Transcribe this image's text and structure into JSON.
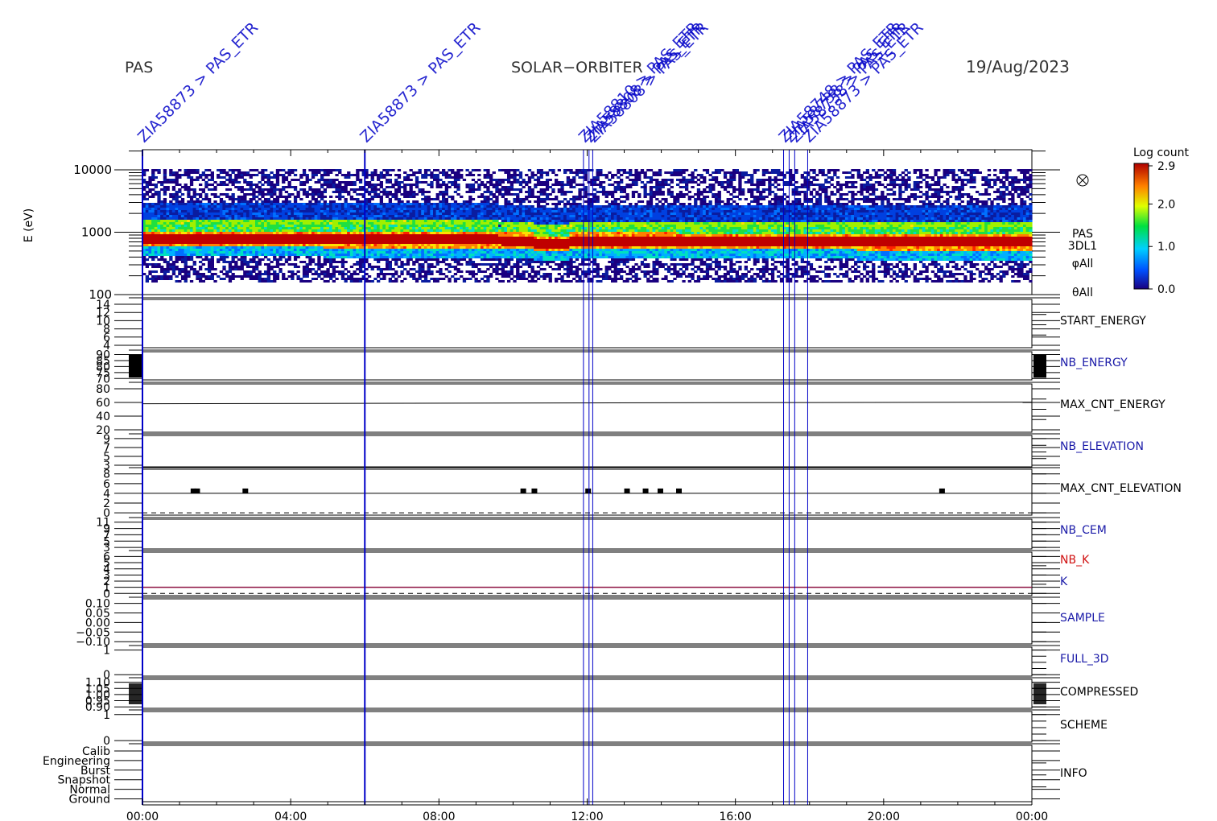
{
  "header": {
    "left": "PAS",
    "center": "SOLAR−ORBITER",
    "right": "19/Aug/2023"
  },
  "colors": {
    "axes": "#000000",
    "event_line": "#0000c8",
    "panel_label_blue": "#1a1aa8",
    "panel_label_red": "#d01010",
    "nb_k_line": "#8c1040"
  },
  "chart_data": {
    "type": "heatmap",
    "x_axis": {
      "ticks": [
        "00:00",
        "04:00",
        "08:00",
        "12:00",
        "16:00",
        "20:00",
        "00:00"
      ],
      "range_hours": [
        0,
        24
      ]
    },
    "events": [
      {
        "hour": 0.0,
        "label": "ZIA58873 > PAS_ETR"
      },
      {
        "hour": 6.0,
        "label": "ZIA58873 > PAS_ETR"
      },
      {
        "hour": 11.9,
        "label": "ZIA58810 > PAS_ETR"
      },
      {
        "hour": 12.05,
        "label": "ZIA58808 > PAS_ETR"
      },
      {
        "hour": 12.15,
        "label": "ZIA58808 > PAS_ETR"
      },
      {
        "hour": 17.3,
        "label": "ZIA58748 > PAS_ETR"
      },
      {
        "hour": 17.45,
        "label": "ZIA58738 > PAS_ETR"
      },
      {
        "hour": 17.6,
        "label": "ZIA58738 > PAS_ETR"
      },
      {
        "hour": 17.95,
        "label": "ZIA58873 > PAS_ETR"
      }
    ],
    "spectrogram": {
      "ylabel": "E (eV)",
      "y_ticks": [
        "10000",
        "1000",
        "100"
      ],
      "y_range_ev": [
        100,
        20000
      ],
      "y_scale": "log",
      "core_energy_ev": [
        900,
        750
      ],
      "side_labels": [
        "PAS",
        "3DL1",
        "φAll",
        "θAll"
      ],
      "colorbar": {
        "title": "Log count",
        "ticks": [
          "2.9",
          "2.0",
          "1.0",
          "0.0"
        ],
        "range": [
          0.0,
          2.9
        ]
      }
    },
    "panels": [
      {
        "id": "start-energy",
        "label": "START_ENERGY",
        "label_color": "black",
        "ticks": [
          "14",
          "12",
          "10",
          "8",
          "6",
          "4"
        ],
        "range": [
          4,
          14
        ]
      },
      {
        "id": "nb-energy",
        "label": "NB_ENERGY",
        "label_color": "blue",
        "ticks": [
          "90",
          "85",
          "80",
          "75",
          "70"
        ],
        "range": [
          70,
          90
        ]
      },
      {
        "id": "max-cnt-energy",
        "label": "MAX_CNT_ENERGY",
        "label_color": "black",
        "ticks": [
          "80",
          "60",
          "40",
          "20"
        ],
        "range": [
          0,
          85
        ],
        "baseline_value": 54
      },
      {
        "id": "nb-elevation",
        "label": "NB_ELEVATION",
        "label_color": "blue",
        "ticks": [
          "9",
          "7",
          "5",
          "3"
        ],
        "range": [
          3,
          9
        ]
      },
      {
        "id": "max-cnt-elevation",
        "label": "MAX_CNT_ELEVATION",
        "label_color": "black",
        "ticks": [
          "8",
          "6",
          "4",
          "2",
          "0"
        ],
        "range": [
          0,
          8
        ],
        "baseline_value": 4
      },
      {
        "id": "nb-cem",
        "label": "NB_CEM",
        "label_color": "blue",
        "ticks": [
          "11",
          "9",
          "7",
          "5",
          "3"
        ],
        "range": [
          3,
          11
        ]
      },
      {
        "id": "nb-k",
        "label": "NB_K",
        "label2": "K",
        "label_color": "red",
        "label2_color": "blue",
        "ticks": [
          "6",
          "5",
          "4",
          "3",
          "2",
          "1",
          "0"
        ],
        "range": [
          0,
          6
        ],
        "line_value": 1
      },
      {
        "id": "sample",
        "label": "SAMPLE",
        "label_color": "blue",
        "ticks": [
          "0.10",
          "0.05",
          "0.00",
          "−0.05",
          "−0.10"
        ],
        "range": [
          -0.1,
          0.1
        ]
      },
      {
        "id": "full-3d",
        "label": "FULL_3D",
        "label_color": "blue",
        "ticks": [
          "1",
          "0"
        ],
        "range": [
          0,
          1
        ]
      },
      {
        "id": "compressed",
        "label": "COMPRESSED",
        "label_color": "black",
        "ticks": [
          "1.10",
          "1.05",
          "1.00",
          "0.95",
          "0.90"
        ],
        "range": [
          0.9,
          1.1
        ]
      },
      {
        "id": "scheme",
        "label": "SCHEME",
        "label_color": "black",
        "ticks": [
          "1",
          "0"
        ],
        "range": [
          0,
          1
        ]
      },
      {
        "id": "info",
        "label": "INFO",
        "label_color": "black",
        "ticks": [
          "Calib",
          "Engineering",
          "Burst",
          "Snapshot",
          "Normal",
          "Ground"
        ],
        "range": [
          0,
          5
        ]
      }
    ]
  }
}
